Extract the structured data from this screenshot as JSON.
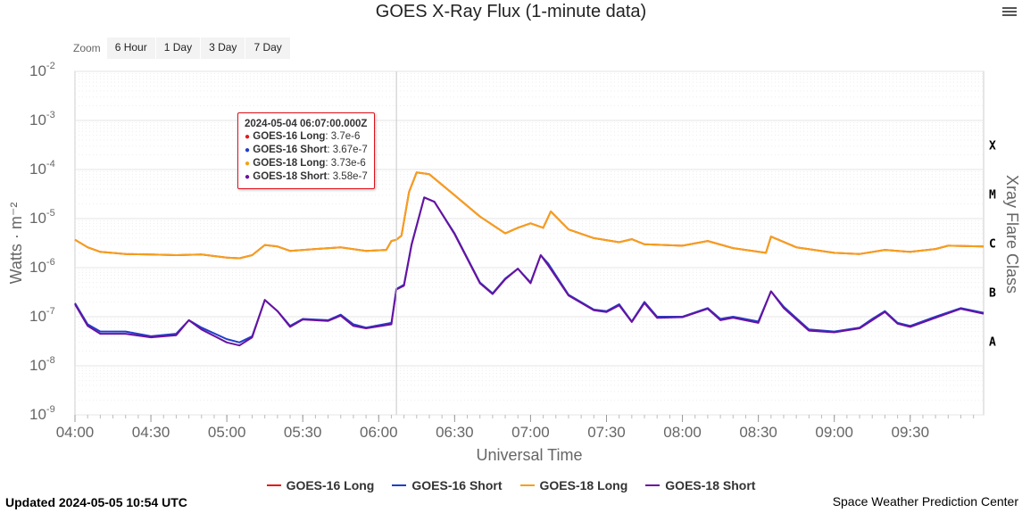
{
  "header": {
    "title": "GOES X-Ray Flux (1-minute data)",
    "menu_icon": "hamburger-menu-icon"
  },
  "zoom": {
    "label": "Zoom",
    "buttons": [
      "6 Hour",
      "1 Day",
      "3 Day",
      "7 Day"
    ]
  },
  "footer": {
    "updated": "Updated 2024-05-05 10:54 UTC",
    "credit": "Space Weather Prediction Center"
  },
  "tooltip": {
    "title": "2024-05-04 06:07:00.000Z",
    "rows": [
      {
        "series": "GOES-16 Long",
        "value": "3.7e-6",
        "color": "#e41a1c"
      },
      {
        "series": "GOES-16 Short",
        "value": "3.67e-7",
        "color": "#1f3fc9"
      },
      {
        "series": "GOES-18 Long",
        "value": "3.73e-6",
        "color": "#f5a01a"
      },
      {
        "series": "GOES-18 Short",
        "value": "3.58e-7",
        "color": "#6a12a0"
      }
    ]
  },
  "chart_data": {
    "type": "line",
    "title": "GOES X-Ray Flux (1-minute data)",
    "xlabel": "Universal Time",
    "ylabel": "Watts · m⁻²",
    "right_axis_label": "Xray Flare Class",
    "y_scale": "log",
    "ylim": [
      1e-09,
      0.01
    ],
    "y_ticks": [
      {
        "base": "10",
        "exp": "-9",
        "value": 1e-09
      },
      {
        "base": "10",
        "exp": "-8",
        "value": 1e-08
      },
      {
        "base": "10",
        "exp": "-7",
        "value": 1e-07
      },
      {
        "base": "10",
        "exp": "-6",
        "value": 1e-06
      },
      {
        "base": "10",
        "exp": "-5",
        "value": 1e-05
      },
      {
        "base": "10",
        "exp": "-4",
        "value": 0.0001
      },
      {
        "base": "10",
        "exp": "-3",
        "value": 0.001
      },
      {
        "base": "10",
        "exp": "-2",
        "value": 0.01
      }
    ],
    "x_range": [
      "04:00",
      "09:59"
    ],
    "x_ticks": [
      "04:00",
      "04:30",
      "05:00",
      "05:30",
      "06:00",
      "06:30",
      "07:00",
      "07:30",
      "08:00",
      "08:30",
      "09:00",
      "09:30"
    ],
    "crosshair_time": "06:07",
    "flare_classes": [
      {
        "label": "X",
        "value": 0.0001
      },
      {
        "label": "M",
        "value": 1e-05
      },
      {
        "label": "C",
        "value": 1e-06
      },
      {
        "label": "B",
        "value": 1e-07
      },
      {
        "label": "A",
        "value": 1e-08
      }
    ],
    "grid": true,
    "legend_position": "bottom-center",
    "series": [
      {
        "name": "GOES-16 Long",
        "color": "#e41a1c",
        "points": [
          [
            "04:00",
            3.7e-06
          ],
          [
            "04:05",
            2.6e-06
          ],
          [
            "04:10",
            2.1e-06
          ],
          [
            "04:20",
            1.9e-06
          ],
          [
            "04:30",
            1.85e-06
          ],
          [
            "04:40",
            1.8e-06
          ],
          [
            "04:50",
            1.85e-06
          ],
          [
            "05:00",
            1.6e-06
          ],
          [
            "05:05",
            1.55e-06
          ],
          [
            "05:10",
            1.8e-06
          ],
          [
            "05:15",
            2.9e-06
          ],
          [
            "05:20",
            2.7e-06
          ],
          [
            "05:25",
            2.2e-06
          ],
          [
            "05:35",
            2.4e-06
          ],
          [
            "05:45",
            2.6e-06
          ],
          [
            "05:55",
            2.2e-06
          ],
          [
            "06:03",
            2.3e-06
          ],
          [
            "06:05",
            3.5e-06
          ],
          [
            "06:07",
            3.7e-06
          ],
          [
            "06:09",
            4.5e-06
          ],
          [
            "06:12",
            3.5e-05
          ],
          [
            "06:15",
            8.7e-05
          ],
          [
            "06:20",
            8e-05
          ],
          [
            "06:30",
            3e-05
          ],
          [
            "06:40",
            1.1e-05
          ],
          [
            "06:50",
            5e-06
          ],
          [
            "06:55",
            6.5e-06
          ],
          [
            "07:00",
            8e-06
          ],
          [
            "07:05",
            6.5e-06
          ],
          [
            "07:08",
            1.4e-05
          ],
          [
            "07:15",
            6e-06
          ],
          [
            "07:25",
            4e-06
          ],
          [
            "07:35",
            3.3e-06
          ],
          [
            "07:40",
            3.8e-06
          ],
          [
            "07:45",
            3e-06
          ],
          [
            "08:00",
            2.8e-06
          ],
          [
            "08:10",
            3.5e-06
          ],
          [
            "08:20",
            2.5e-06
          ],
          [
            "08:33",
            2e-06
          ],
          [
            "08:35",
            4.3e-06
          ],
          [
            "08:45",
            2.6e-06
          ],
          [
            "09:00",
            2e-06
          ],
          [
            "09:10",
            1.9e-06
          ],
          [
            "09:20",
            2.3e-06
          ],
          [
            "09:30",
            2.1e-06
          ],
          [
            "09:40",
            2.4e-06
          ],
          [
            "09:45",
            2.8e-06
          ],
          [
            "09:59",
            2.7e-06
          ]
        ]
      },
      {
        "name": "GOES-16 Short",
        "color": "#1f3fc9",
        "points": [
          [
            "04:00",
            1.9e-07
          ],
          [
            "04:05",
            7e-08
          ],
          [
            "04:10",
            5e-08
          ],
          [
            "04:20",
            5e-08
          ],
          [
            "04:30",
            4e-08
          ],
          [
            "04:40",
            4.5e-08
          ],
          [
            "04:45",
            8.5e-08
          ],
          [
            "04:50",
            6e-08
          ],
          [
            "05:00",
            3.5e-08
          ],
          [
            "05:05",
            3e-08
          ],
          [
            "05:10",
            4e-08
          ],
          [
            "05:15",
            2.2e-07
          ],
          [
            "05:20",
            1.3e-07
          ],
          [
            "05:25",
            6.5e-08
          ],
          [
            "05:30",
            9e-08
          ],
          [
            "05:40",
            8.5e-08
          ],
          [
            "05:45",
            1.1e-07
          ],
          [
            "05:50",
            7e-08
          ],
          [
            "05:55",
            6e-08
          ],
          [
            "06:05",
            7.5e-08
          ],
          [
            "06:07",
            3.67e-07
          ],
          [
            "06:10",
            4.5e-07
          ],
          [
            "06:13",
            3e-06
          ],
          [
            "06:18",
            2.7e-05
          ],
          [
            "06:22",
            2.2e-05
          ],
          [
            "06:30",
            5e-06
          ],
          [
            "06:40",
            5e-07
          ],
          [
            "06:45",
            3e-07
          ],
          [
            "06:50",
            6e-07
          ],
          [
            "06:55",
            9.5e-07
          ],
          [
            "07:00",
            5e-07
          ],
          [
            "07:04",
            1.8e-06
          ],
          [
            "07:07",
            1.2e-06
          ],
          [
            "07:15",
            2.8e-07
          ],
          [
            "07:25",
            1.4e-07
          ],
          [
            "07:30",
            1.3e-07
          ],
          [
            "07:35",
            1.8e-07
          ],
          [
            "07:40",
            8e-08
          ],
          [
            "07:45",
            2e-07
          ],
          [
            "07:50",
            1e-07
          ],
          [
            "08:00",
            1e-07
          ],
          [
            "08:10",
            1.5e-07
          ],
          [
            "08:15",
            9e-08
          ],
          [
            "08:20",
            1e-07
          ],
          [
            "08:30",
            8e-08
          ],
          [
            "08:35",
            3.3e-07
          ],
          [
            "08:40",
            1.6e-07
          ],
          [
            "08:50",
            5.5e-08
          ],
          [
            "09:00",
            5e-08
          ],
          [
            "09:10",
            6e-08
          ],
          [
            "09:15",
            9e-08
          ],
          [
            "09:20",
            1.3e-07
          ],
          [
            "09:25",
            7.5e-08
          ],
          [
            "09:30",
            6.5e-08
          ],
          [
            "09:40",
            1e-07
          ],
          [
            "09:50",
            1.5e-07
          ],
          [
            "09:59",
            1.2e-07
          ]
        ]
      },
      {
        "name": "GOES-18 Long",
        "color": "#f5a01a",
        "points": [
          [
            "04:00",
            3.73e-06
          ],
          [
            "04:05",
            2.6e-06
          ],
          [
            "04:10",
            2.1e-06
          ],
          [
            "04:20",
            1.9e-06
          ],
          [
            "04:30",
            1.85e-06
          ],
          [
            "04:40",
            1.8e-06
          ],
          [
            "04:50",
            1.85e-06
          ],
          [
            "05:00",
            1.6e-06
          ],
          [
            "05:05",
            1.55e-06
          ],
          [
            "05:10",
            1.8e-06
          ],
          [
            "05:15",
            2.9e-06
          ],
          [
            "05:20",
            2.7e-06
          ],
          [
            "05:25",
            2.2e-06
          ],
          [
            "05:35",
            2.4e-06
          ],
          [
            "05:45",
            2.6e-06
          ],
          [
            "05:55",
            2.2e-06
          ],
          [
            "06:03",
            2.3e-06
          ],
          [
            "06:05",
            3.5e-06
          ],
          [
            "06:07",
            3.73e-06
          ],
          [
            "06:09",
            4.5e-06
          ],
          [
            "06:12",
            3.5e-05
          ],
          [
            "06:15",
            8.7e-05
          ],
          [
            "06:20",
            8e-05
          ],
          [
            "06:30",
            3e-05
          ],
          [
            "06:40",
            1.1e-05
          ],
          [
            "06:50",
            5e-06
          ],
          [
            "06:55",
            6.5e-06
          ],
          [
            "07:00",
            8e-06
          ],
          [
            "07:05",
            6.5e-06
          ],
          [
            "07:08",
            1.4e-05
          ],
          [
            "07:15",
            6e-06
          ],
          [
            "07:25",
            4e-06
          ],
          [
            "07:35",
            3.3e-06
          ],
          [
            "07:40",
            3.8e-06
          ],
          [
            "07:45",
            3e-06
          ],
          [
            "08:00",
            2.8e-06
          ],
          [
            "08:10",
            3.5e-06
          ],
          [
            "08:20",
            2.5e-06
          ],
          [
            "08:33",
            2e-06
          ],
          [
            "08:35",
            4.3e-06
          ],
          [
            "08:45",
            2.6e-06
          ],
          [
            "09:00",
            2e-06
          ],
          [
            "09:10",
            1.9e-06
          ],
          [
            "09:20",
            2.3e-06
          ],
          [
            "09:30",
            2.1e-06
          ],
          [
            "09:40",
            2.4e-06
          ],
          [
            "09:45",
            2.8e-06
          ],
          [
            "09:59",
            2.7e-06
          ]
        ]
      },
      {
        "name": "GOES-18 Short",
        "color": "#6a12a0",
        "points": [
          [
            "04:00",
            1.8e-07
          ],
          [
            "04:05",
            6.5e-08
          ],
          [
            "04:10",
            4.5e-08
          ],
          [
            "04:20",
            4.5e-08
          ],
          [
            "04:30",
            3.8e-08
          ],
          [
            "04:40",
            4.2e-08
          ],
          [
            "04:45",
            8.5e-08
          ],
          [
            "04:50",
            5.5e-08
          ],
          [
            "05:00",
            3e-08
          ],
          [
            "05:05",
            2.6e-08
          ],
          [
            "05:10",
            3.8e-08
          ],
          [
            "05:15",
            2.2e-07
          ],
          [
            "05:20",
            1.3e-07
          ],
          [
            "05:25",
            6.2e-08
          ],
          [
            "05:30",
            8.8e-08
          ],
          [
            "05:40",
            8.2e-08
          ],
          [
            "05:45",
            1.05e-07
          ],
          [
            "05:50",
            6.5e-08
          ],
          [
            "05:55",
            5.8e-08
          ],
          [
            "06:05",
            7e-08
          ],
          [
            "06:07",
            3.58e-07
          ],
          [
            "06:10",
            4.3e-07
          ],
          [
            "06:13",
            2.9e-06
          ],
          [
            "06:18",
            2.7e-05
          ],
          [
            "06:22",
            2.2e-05
          ],
          [
            "06:30",
            4.8e-06
          ],
          [
            "06:40",
            4.8e-07
          ],
          [
            "06:45",
            2.9e-07
          ],
          [
            "06:50",
            5.8e-07
          ],
          [
            "06:55",
            9.5e-07
          ],
          [
            "07:00",
            4.8e-07
          ],
          [
            "07:04",
            1.8e-06
          ],
          [
            "07:07",
            1.1e-06
          ],
          [
            "07:15",
            2.7e-07
          ],
          [
            "07:25",
            1.35e-07
          ],
          [
            "07:30",
            1.25e-07
          ],
          [
            "07:35",
            1.7e-07
          ],
          [
            "07:40",
            7.8e-08
          ],
          [
            "07:45",
            1.9e-07
          ],
          [
            "07:50",
            9.5e-08
          ],
          [
            "08:00",
            9.8e-08
          ],
          [
            "08:10",
            1.45e-07
          ],
          [
            "08:15",
            8.5e-08
          ],
          [
            "08:20",
            9.5e-08
          ],
          [
            "08:30",
            7.5e-08
          ],
          [
            "08:35",
            3.3e-07
          ],
          [
            "08:40",
            1.5e-07
          ],
          [
            "08:50",
            5.2e-08
          ],
          [
            "09:00",
            4.8e-08
          ],
          [
            "09:10",
            5.8e-08
          ],
          [
            "09:15",
            8.5e-08
          ],
          [
            "09:20",
            1.25e-07
          ],
          [
            "09:25",
            7.2e-08
          ],
          [
            "09:30",
            6.2e-08
          ],
          [
            "09:40",
            9.5e-08
          ],
          [
            "09:50",
            1.45e-07
          ],
          [
            "09:59",
            1.15e-07
          ]
        ]
      }
    ]
  }
}
